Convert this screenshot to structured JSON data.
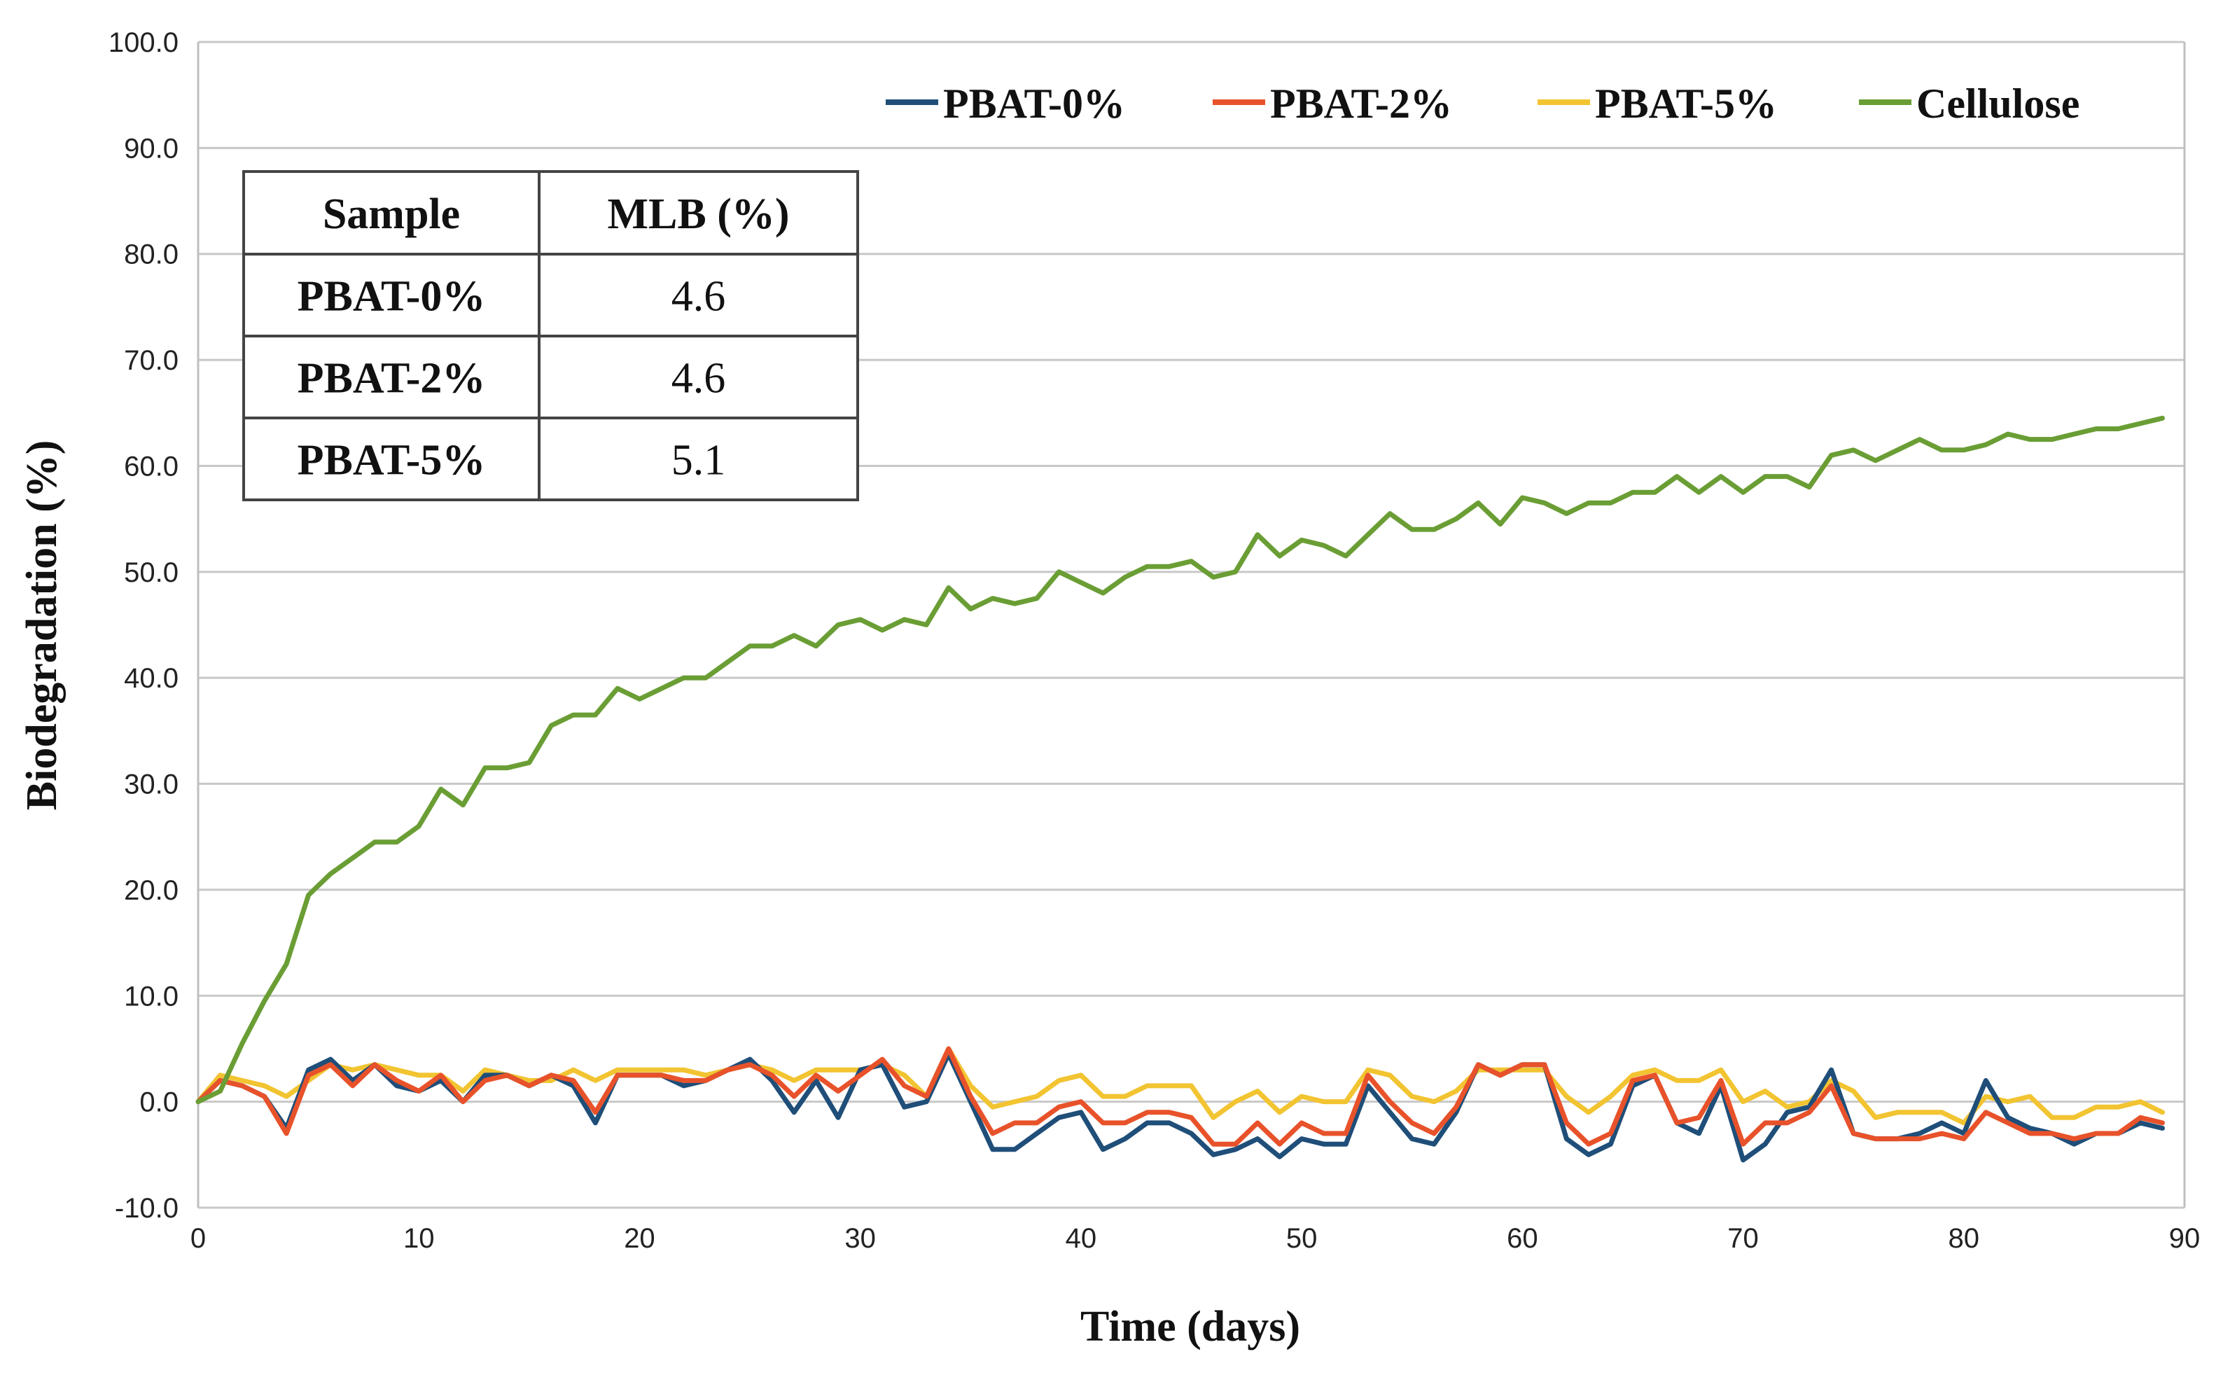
{
  "chart_data": {
    "type": "line",
    "xlabel": "Time (days)",
    "ylabel": "Biodegradation (%)",
    "xlim": [
      0,
      90
    ],
    "ylim": [
      -10,
      100
    ],
    "x_ticks": [
      "0",
      "10",
      "20",
      "30",
      "40",
      "50",
      "60",
      "70",
      "80",
      "90"
    ],
    "y_ticks": [
      "-10.0",
      "0.0",
      "10.0",
      "20.0",
      "30.0",
      "40.0",
      "50.0",
      "60.0",
      "70.0",
      "80.0",
      "90.0",
      "100.0"
    ],
    "grid": "horizontal",
    "legend_position": "top-right",
    "x": [
      0,
      1,
      2,
      3,
      4,
      5,
      6,
      7,
      8,
      9,
      10,
      11,
      12,
      13,
      14,
      15,
      16,
      17,
      18,
      19,
      20,
      21,
      22,
      23,
      24,
      25,
      26,
      27,
      28,
      29,
      30,
      31,
      32,
      33,
      34,
      35,
      36,
      37,
      38,
      39,
      40,
      41,
      42,
      43,
      44,
      45,
      46,
      47,
      48,
      49,
      50,
      51,
      52,
      53,
      54,
      55,
      56,
      57,
      58,
      59,
      60,
      61,
      62,
      63,
      64,
      65,
      66,
      67,
      68,
      69,
      70,
      71,
      72,
      73,
      74,
      75,
      76,
      77,
      78,
      79,
      80,
      81,
      82,
      83,
      84,
      85,
      86,
      87,
      88,
      89
    ],
    "series": [
      {
        "name": "PBAT-0%",
        "color": "#1F4E79",
        "values": [
          0,
          2,
          1.5,
          0.5,
          -2.5,
          3,
          4,
          2,
          3.5,
          1.5,
          1,
          2,
          0,
          2.5,
          2.5,
          1.5,
          2.5,
          1.5,
          -2,
          2.5,
          2.5,
          2.5,
          1.5,
          2,
          3,
          4,
          2,
          -1,
          2,
          -1.5,
          3,
          3.5,
          -0.5,
          0,
          4.5,
          0,
          -4.5,
          -4.5,
          -3,
          -1.5,
          -1,
          -4.5,
          -3.5,
          -2,
          -2,
          -3,
          -5,
          -4.5,
          -3.5,
          -5.2,
          -3.5,
          -4,
          -4,
          1.5,
          -1,
          -3.5,
          -4,
          -1,
          3.5,
          2.5,
          3.5,
          3.5,
          -3.5,
          -5,
          -4,
          1.5,
          2.5,
          -2,
          -3,
          1.5,
          -5.5,
          -4,
          -1,
          -0.5,
          3,
          -3,
          -3.5,
          -3.5,
          -3,
          -2,
          -3,
          2,
          -1.5,
          -2.5,
          -3,
          -4,
          -3,
          -3,
          -2,
          -2.5
        ]
      },
      {
        "name": "PBAT-2%",
        "color": "#E8522A",
        "values": [
          0,
          2,
          1.5,
          0.5,
          -3,
          2.5,
          3.5,
          1.5,
          3.5,
          2,
          1,
          2.5,
          0,
          2,
          2.5,
          1.5,
          2.5,
          2,
          -1,
          2.5,
          2.5,
          2.5,
          2,
          2,
          3,
          3.5,
          2.5,
          0.5,
          2.5,
          1,
          2.5,
          4,
          1.5,
          0.5,
          5,
          0.5,
          -3,
          -2,
          -2,
          -0.5,
          0,
          -2,
          -2,
          -1,
          -1,
          -1.5,
          -4,
          -4,
          -2,
          -4,
          -2,
          -3,
          -3,
          2.5,
          0,
          -2,
          -3,
          -0.5,
          3.5,
          2.5,
          3.5,
          3.5,
          -2,
          -4,
          -3,
          2,
          2.5,
          -2,
          -1.5,
          2,
          -4,
          -2,
          -2,
          -1,
          1.5,
          -3,
          -3.5,
          -3.5,
          -3.5,
          -3,
          -3.5,
          -1,
          -2,
          -3,
          -3,
          -3.5,
          -3,
          -3,
          -1.5,
          -2
        ]
      },
      {
        "name": "PBAT-5%",
        "color": "#F2C431",
        "values": [
          0,
          2.5,
          2,
          1.5,
          0.5,
          2,
          3.5,
          3,
          3.5,
          3,
          2.5,
          2.5,
          1,
          3,
          2.5,
          2,
          2,
          3,
          2,
          3,
          3,
          3,
          3,
          2.5,
          3,
          3.5,
          3,
          2,
          3,
          3,
          3,
          3.5,
          2.5,
          0.5,
          5,
          1.5,
          -0.5,
          0,
          0.5,
          2,
          2.5,
          0.5,
          0.5,
          1.5,
          1.5,
          1.5,
          -1.5,
          0,
          1,
          -1,
          0.5,
          0,
          0,
          3,
          2.5,
          0.5,
          0,
          1,
          3,
          3,
          3,
          3,
          0.5,
          -1,
          0.5,
          2.5,
          3,
          2,
          2,
          3,
          0,
          1,
          -0.5,
          0,
          2,
          1,
          -1.5,
          -1,
          -1,
          -1,
          -2,
          0.5,
          0,
          0.5,
          -1.5,
          -1.5,
          -0.5,
          -0.5,
          0,
          -1
        ]
      },
      {
        "name": "Cellulose",
        "color": "#6A9E35",
        "values": [
          0,
          1,
          5.5,
          9.5,
          13,
          19.5,
          21.5,
          23,
          24.5,
          24.5,
          26,
          29.5,
          28,
          31.5,
          31.5,
          32,
          35.5,
          36.5,
          36.5,
          39,
          38,
          39,
          40,
          40,
          41.5,
          43,
          43,
          44,
          43,
          45,
          45.5,
          44.5,
          45.5,
          45,
          48.5,
          46.5,
          47.5,
          47,
          47.5,
          50,
          49,
          48,
          49.5,
          50.5,
          50.5,
          51,
          49.5,
          50,
          53.5,
          51.5,
          53,
          52.5,
          51.5,
          53.5,
          55.5,
          54,
          54,
          55,
          56.5,
          54.5,
          57,
          56.5,
          55.5,
          56.5,
          56.5,
          57.5,
          57.5,
          59,
          57.5,
          59,
          57.5,
          59,
          59,
          58,
          61,
          61.5,
          60.5,
          61.5,
          62.5,
          61.5,
          61.5,
          62,
          63,
          62.5,
          62.5,
          63,
          63.5,
          63.5,
          64,
          64.5
        ]
      }
    ],
    "inset_table": {
      "headers": [
        "Sample",
        "MLB (%)"
      ],
      "rows": [
        [
          "PBAT-0%",
          "4.6"
        ],
        [
          "PBAT-2%",
          "4.6"
        ],
        [
          "PBAT-5%",
          "5.1"
        ]
      ]
    }
  }
}
